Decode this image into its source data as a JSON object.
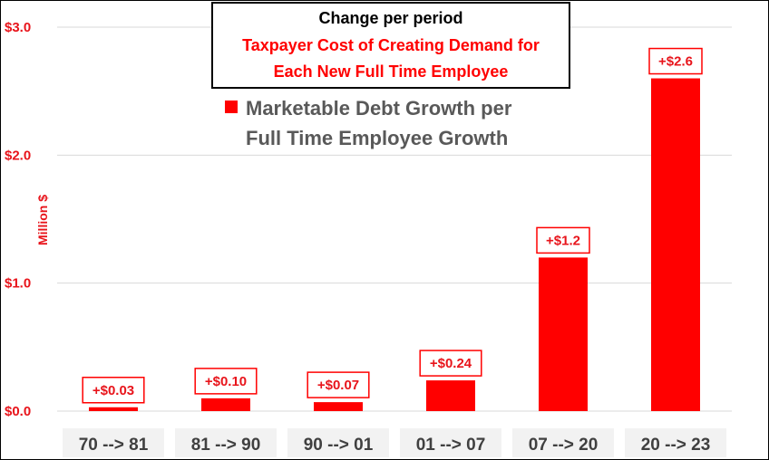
{
  "chart_data": {
    "type": "bar",
    "title": "Change per period",
    "subtitle": [
      "Taxpayer Cost of Creating Demand for",
      "Each New Full Time Employee"
    ],
    "ylabel": "Million $",
    "xlabel": "",
    "ylim": [
      0,
      3.0
    ],
    "yticks": [
      0.0,
      1.0,
      2.0,
      3.0
    ],
    "ytick_labels": [
      "$0.0",
      "$1.0",
      "$2.0",
      "$3.0"
    ],
    "categories": [
      "70 --> 81",
      "81 --> 90",
      "90 --> 01",
      "01 --> 07",
      "07 --> 20",
      "20 --> 23"
    ],
    "series": [
      {
        "name": "Marketable Debt Growth per Full Time Employee Growth",
        "values": [
          0.03,
          0.1,
          0.07,
          0.24,
          1.2,
          2.6
        ],
        "data_labels": [
          "+$0.03",
          "+$0.10",
          "+$0.07",
          "+$0.24",
          "+$1.2",
          "+$2.6"
        ],
        "color": "#ff0000"
      }
    ],
    "legend": {
      "lines": [
        "Marketable Debt Growth per",
        "Full Time Employee Growth"
      ],
      "placement": "top-center"
    },
    "grid": true,
    "colors": {
      "bar": "#ff0000",
      "axis_text": "#e8141b",
      "category_text": "#404040",
      "category_bg": "#f2f2f2",
      "grid": "#d9d9d9",
      "legend_text": "#595959"
    }
  }
}
